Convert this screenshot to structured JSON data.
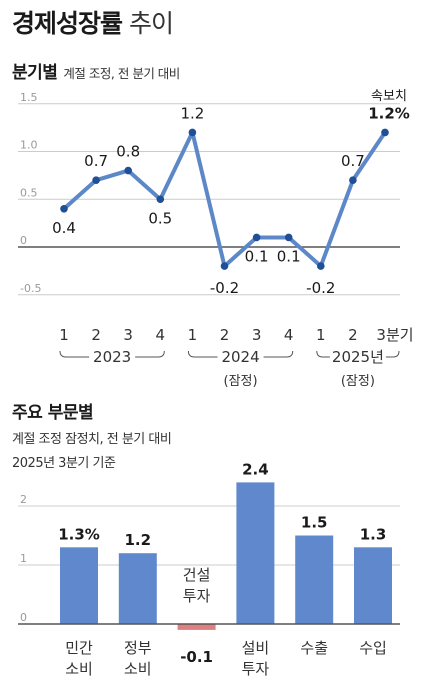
{
  "title": {
    "bold": "경제성장률",
    "light": "추이"
  },
  "line_section": {
    "title": "분기별",
    "subtitle": "계절 조정, 전 분기 대비",
    "flash_label": "속보치"
  },
  "bar_section": {
    "title": "주요 부문별",
    "note1": "계절 조정 잠정치, 전 분기 대비",
    "note2": "2025년 3분기 기준"
  },
  "colors": {
    "line": "#5d88c8",
    "point": "#1f4f96",
    "bar": "#6089cd",
    "negative_bar": "#e07f7f",
    "zero_line": "#555555",
    "grid": "#cccccc"
  },
  "chart_data": [
    {
      "type": "line",
      "x": [
        "1",
        "2",
        "3",
        "4",
        "1",
        "2",
        "3",
        "4",
        "1",
        "2",
        "3분기"
      ],
      "values": [
        0.4,
        0.7,
        0.8,
        0.5,
        1.2,
        -0.2,
        0.1,
        0.1,
        -0.2,
        0.7,
        1.2
      ],
      "value_labels": [
        "0.4",
        "0.7",
        "0.8",
        "0.5",
        "1.2",
        "-0.2",
        "0.1",
        "0.1",
        "-0.2",
        "0.7",
        "1.2%"
      ],
      "year_groups": [
        {
          "label": "2023",
          "note": ""
        },
        {
          "label": "2024",
          "note": "(잠정)"
        },
        {
          "label": "2025년",
          "note": "(잠정)"
        }
      ],
      "yticks": [
        "1.5",
        "1.0",
        "0.5",
        "0",
        "-0.5"
      ],
      "ylim": [
        -0.5,
        1.5
      ],
      "grid": true
    },
    {
      "type": "bar",
      "categories": [
        "민간\n소비",
        "정부\n소비",
        "건설\n투자",
        "설비\n투자",
        "수출",
        "수입"
      ],
      "values": [
        1.3,
        1.2,
        -0.1,
        2.4,
        1.5,
        1.3
      ],
      "value_labels": [
        "1.3%",
        "1.2",
        "-0.1",
        "2.4",
        "1.5",
        "1.3"
      ],
      "yticks": [
        "2",
        "1",
        "0"
      ],
      "ylim": [
        0,
        2.5
      ],
      "grid": true
    }
  ]
}
